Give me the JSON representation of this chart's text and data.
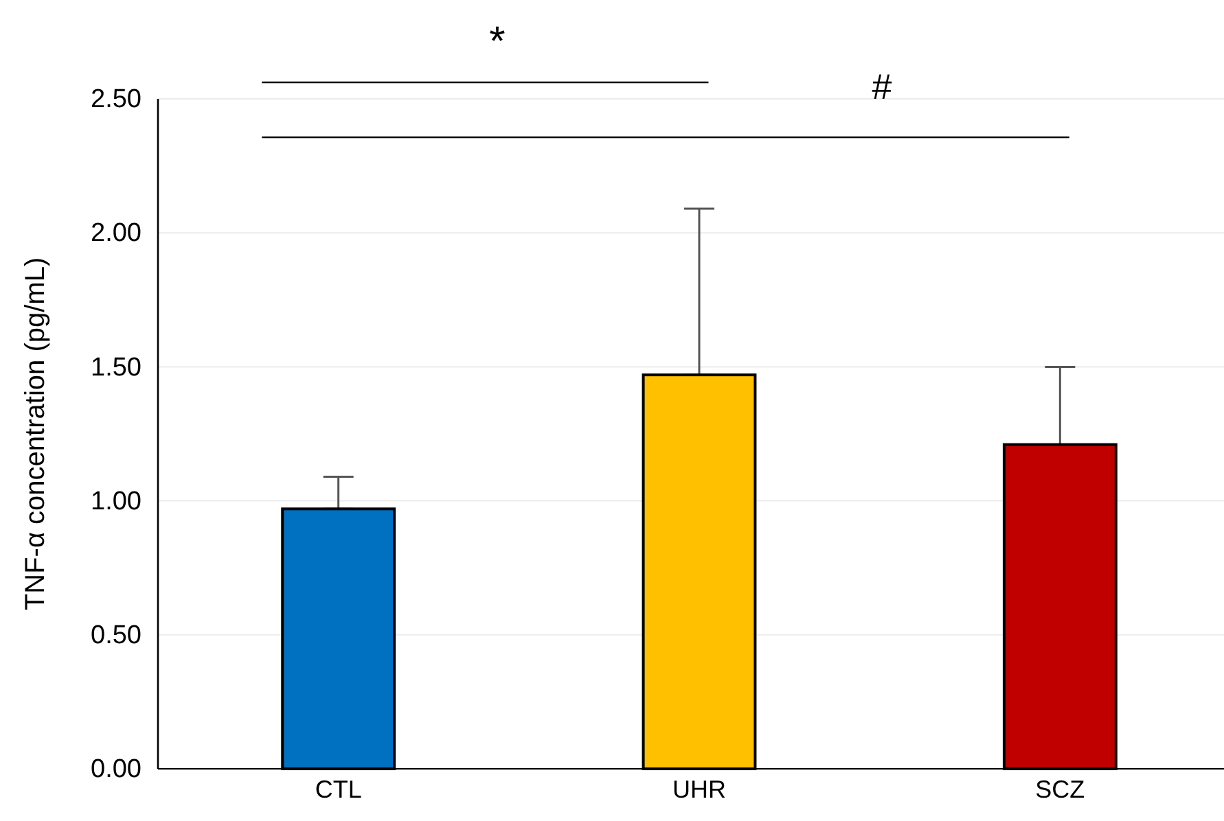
{
  "chart_data": {
    "type": "bar",
    "ylabel": "TNF-α concentration (pg/mL)",
    "categories": [
      "CTL",
      "UHR",
      "SCZ"
    ],
    "values": [
      0.97,
      1.47,
      1.21
    ],
    "colors": [
      "#0070c0",
      "#ffc000",
      "#c00000"
    ],
    "errors": [
      [
        0.97,
        1.09
      ],
      [
        1.47,
        2.09
      ],
      [
        1.21,
        1.5
      ]
    ],
    "ylim": [
      0,
      2.5
    ],
    "yticks": [
      {
        "value": 0,
        "label": "0.00"
      },
      {
        "value": 0.5,
        "label": "0.50"
      },
      {
        "value": 1,
        "label": "1.00"
      },
      {
        "value": 1.5,
        "label": "1.50"
      },
      {
        "value": 2,
        "label": "2.00"
      },
      {
        "value": 2.5,
        "label": "2.50"
      }
    ],
    "grid": "y",
    "annotations": [
      "*",
      "#"
    ]
  }
}
